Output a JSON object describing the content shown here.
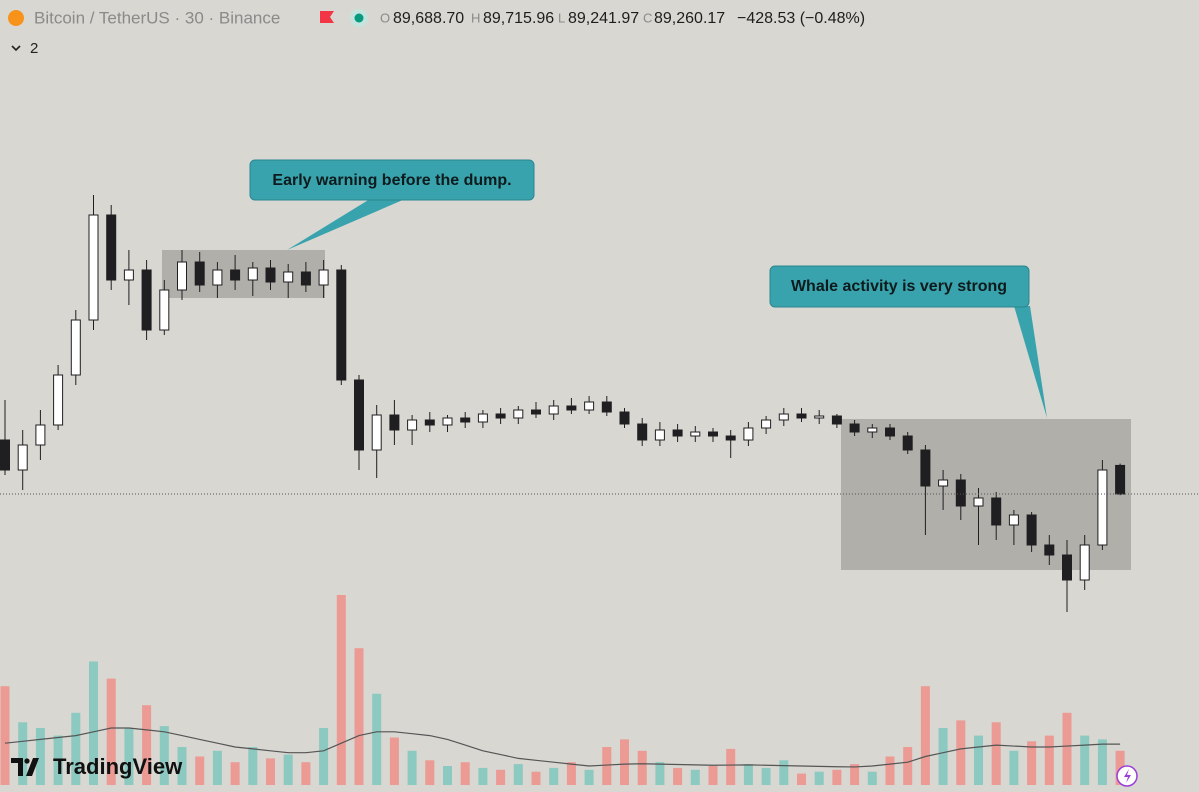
{
  "header": {
    "symbol": "Bitcoin / TetherUS · 30 · Binance",
    "ohlc_labels": [
      "O",
      "H",
      "L",
      "C"
    ],
    "ohlc_values": [
      "89,688.70",
      "89,715.96",
      "89,241.97",
      "89,260.17"
    ],
    "change": "−428.53 (−0.48%)",
    "indicators": "2"
  },
  "brand": "TradingView",
  "chart_data": {
    "type": "candlestick",
    "ylim": [
      87000,
      94200
    ],
    "vlim": [
      0,
      1000
    ],
    "up_color": "#ffffff",
    "down_color": "#1f1f22",
    "wick_color": "#1f1f22",
    "volume_up_color": "#8cc9c0",
    "volume_down_color": "#eb9a94",
    "volume_ma_color": "#555555",
    "annotations": [
      "Early warning before the dump.",
      "Whale activity is very strong"
    ],
    "ohlc": [
      [
        90070,
        90670,
        89545,
        89620
      ],
      [
        89620,
        90220,
        89320,
        89995
      ],
      [
        89995,
        90520,
        89770,
        90295
      ],
      [
        90295,
        91195,
        90220,
        91045
      ],
      [
        91045,
        92020,
        90895,
        91870
      ],
      [
        91870,
        93745,
        91720,
        93445
      ],
      [
        93445,
        93595,
        92320,
        92470
      ],
      [
        92470,
        92920,
        92095,
        92620
      ],
      [
        92620,
        92770,
        91570,
        91720
      ],
      [
        91720,
        92470,
        91645,
        92320
      ],
      [
        92320,
        92920,
        92170,
        92740
      ],
      [
        92740,
        92890,
        92290,
        92395
      ],
      [
        92395,
        92740,
        92200,
        92620
      ],
      [
        92620,
        92845,
        92320,
        92470
      ],
      [
        92470,
        92740,
        92230,
        92650
      ],
      [
        92650,
        92770,
        92320,
        92440
      ],
      [
        92440,
        92710,
        92200,
        92590
      ],
      [
        92590,
        92740,
        92290,
        92395
      ],
      [
        92395,
        92770,
        92200,
        92620
      ],
      [
        92620,
        92695,
        90895,
        90970
      ],
      [
        90970,
        91045,
        89620,
        89920
      ],
      [
        89920,
        90595,
        89500,
        90445
      ],
      [
        90445,
        90670,
        89995,
        90220
      ],
      [
        90220,
        90445,
        89995,
        90370
      ],
      [
        90370,
        90490,
        90190,
        90295
      ],
      [
        90295,
        90445,
        90190,
        90400
      ],
      [
        90400,
        90490,
        90250,
        90340
      ],
      [
        90340,
        90520,
        90250,
        90460
      ],
      [
        90460,
        90550,
        90310,
        90400
      ],
      [
        90400,
        90580,
        90310,
        90520
      ],
      [
        90520,
        90640,
        90400,
        90460
      ],
      [
        90460,
        90670,
        90370,
        90580
      ],
      [
        90580,
        90700,
        90460,
        90520
      ],
      [
        90520,
        90730,
        90460,
        90640
      ],
      [
        90640,
        90730,
        90430,
        90490
      ],
      [
        90490,
        90550,
        90250,
        90310
      ],
      [
        90310,
        90400,
        89980,
        90070
      ],
      [
        90070,
        90340,
        89980,
        90220
      ],
      [
        90220,
        90310,
        90040,
        90130
      ],
      [
        90130,
        90280,
        90040,
        90190
      ],
      [
        90190,
        90250,
        90040,
        90130
      ],
      [
        90130,
        90220,
        89800,
        90070
      ],
      [
        90070,
        90340,
        89980,
        90250
      ],
      [
        90250,
        90430,
        90160,
        90370
      ],
      [
        90370,
        90550,
        90280,
        90460
      ],
      [
        90460,
        90550,
        90340,
        90400
      ],
      [
        90400,
        90520,
        90310,
        90430
      ],
      [
        90430,
        90460,
        90250,
        90310
      ],
      [
        90310,
        90370,
        90130,
        90190
      ],
      [
        90190,
        90310,
        90100,
        90250
      ],
      [
        90250,
        90310,
        90070,
        90130
      ],
      [
        90130,
        90190,
        89860,
        89920
      ],
      [
        89920,
        89995,
        88645,
        89380
      ],
      [
        89380,
        89620,
        89020,
        89470
      ],
      [
        89470,
        89560,
        88870,
        89080
      ],
      [
        89080,
        89350,
        88495,
        89200
      ],
      [
        89200,
        89290,
        88570,
        88795
      ],
      [
        88795,
        89020,
        88495,
        88945
      ],
      [
        88945,
        88990,
        88390,
        88495
      ],
      [
        88495,
        88645,
        88195,
        88345
      ],
      [
        88345,
        88570,
        87490,
        87970
      ],
      [
        87970,
        88645,
        87820,
        88495
      ],
      [
        88495,
        89770,
        88420,
        89620
      ],
      [
        89688.7,
        89715.96,
        89241.97,
        89260.17
      ]
    ],
    "volume": [
      520,
      330,
      300,
      260,
      380,
      650,
      560,
      300,
      420,
      310,
      200,
      150,
      180,
      120,
      200,
      140,
      160,
      120,
      300,
      1000,
      720,
      480,
      250,
      180,
      130,
      100,
      120,
      90,
      80,
      110,
      70,
      90,
      120,
      80,
      200,
      240,
      180,
      120,
      90,
      80,
      100,
      190,
      110,
      90,
      130,
      60,
      70,
      80,
      110,
      70,
      150,
      200,
      520,
      300,
      340,
      260,
      330,
      180,
      230,
      260,
      380,
      260,
      240,
      180
    ],
    "volume_ma": [
      220,
      230,
      240,
      250,
      260,
      280,
      300,
      300,
      290,
      280,
      260,
      240,
      220,
      200,
      190,
      180,
      170,
      170,
      180,
      220,
      260,
      280,
      280,
      270,
      260,
      240,
      210,
      180,
      160,
      140,
      130,
      120,
      110,
      100,
      105,
      110,
      112,
      110,
      108,
      106,
      104,
      105,
      106,
      104,
      102,
      100,
      98,
      96,
      95,
      100,
      110,
      120,
      150,
      170,
      190,
      200,
      210,
      205,
      200,
      200,
      205,
      210,
      215,
      215
    ]
  }
}
